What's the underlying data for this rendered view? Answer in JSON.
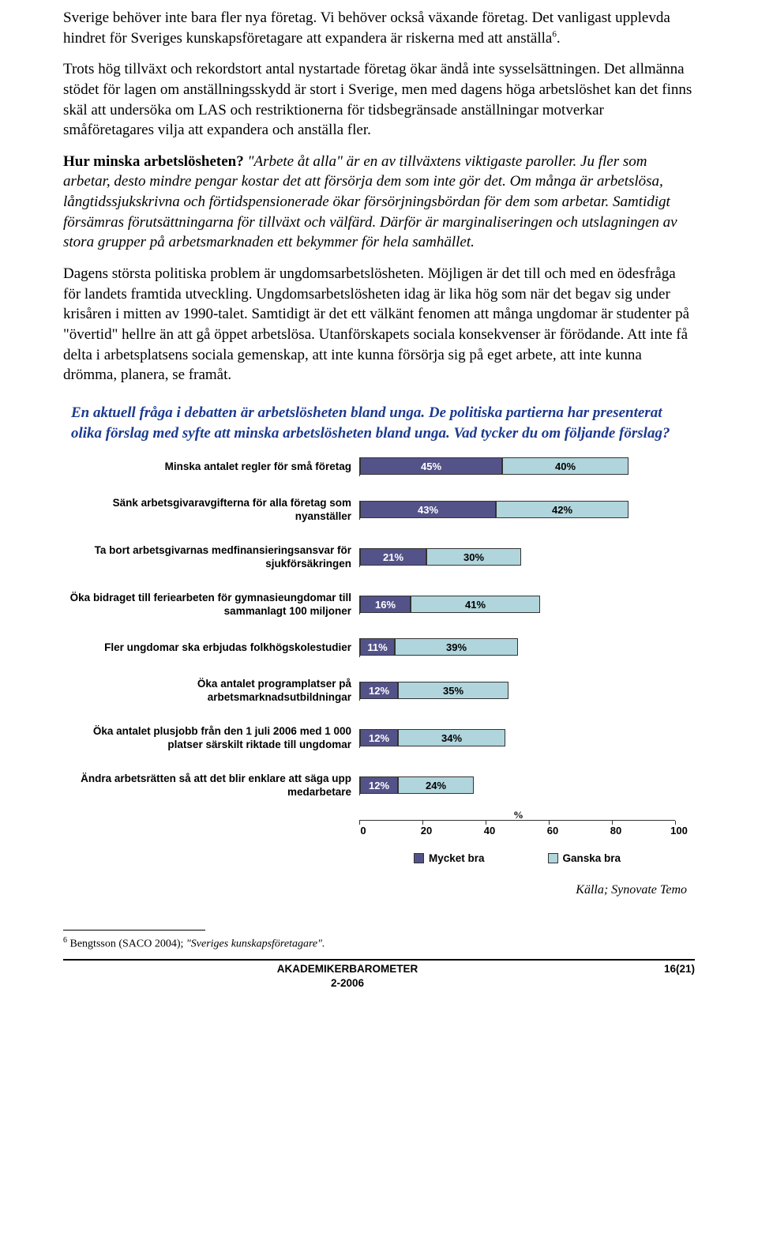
{
  "paragraphs": {
    "p1a": "Sverige behöver inte bara fler nya företag. Vi behöver också växande företag. Det vanligast upplevda hindret för Sveriges kunskapsföretagare att expandera är riskerna med att anställa",
    "p1_fn": "6",
    "p1b": ".",
    "p2": "Trots hög tillväxt och rekordstort antal nystartade företag ökar ändå inte sysselsättningen. Det allmänna stödet för lagen om anställningsskydd är stort i Sverige, men med dagens höga arbetslöshet kan det finns skäl att undersöka om LAS och restriktionerna för tidsbegränsade anställningar motverkar småföretagares vilja att expandera och anställa fler.",
    "p3_lead": "Hur minska arbetslösheten?",
    "p3_rest": " \"Arbete åt alla\" är en av tillväxtens viktigaste paroller. Ju fler som arbetar, desto mindre pengar kostar det att försörja dem som inte gör det. Om många är arbetslösa, långtidssjukskrivna och förtidspensionerade ökar försörjningsbördan för dem som arbetar. Samtidigt försämras förutsättningarna för tillväxt och välfärd. Därför är marginaliseringen och utslagningen av stora grupper på arbetsmarknaden ett bekymmer för hela samhället.",
    "p4": "Dagens största politiska problem är ungdomsarbetslösheten. Möjligen är det till och med en ödesfråga för landets framtida utveckling. Ungdomsarbetslösheten idag är lika hög som när det begav sig under krisåren i mitten av 1990-talet. Samtidigt är det ett välkänt fenomen att många ungdomar är studenter på \"övertid\" hellre än att gå öppet arbetslösa. Utanförskapets sociala konsekvenser är förödande. Att inte få delta i arbetsplatsens sociala gemenskap, att inte kunna försörja sig på eget arbete, att inte kunna drömma, planera, se framåt."
  },
  "question": "En aktuell fråga i debatten är arbetslösheten bland unga. De politiska partierna har presenterat olika förslag med syfte att minska arbetslösheten bland unga. Vad tycker du om följande förslag?",
  "chart": {
    "type": "stacked-bar-horizontal",
    "xmin": 0,
    "xmax": 100,
    "xtick_step": 20,
    "xticks": [
      0,
      20,
      40,
      60,
      80,
      100
    ],
    "axis_symbol": "%",
    "color_a": "#545389",
    "color_b": "#b0d5dc",
    "text_color_a": "#ffffff",
    "text_color_b": "#000000",
    "border_color": "#333333",
    "rows": [
      {
        "label": "Minska antalet regler för små företag",
        "a": 45,
        "b": 40
      },
      {
        "label": "Sänk arbetsgivaravgifterna för alla företag som nyanställer",
        "a": 43,
        "b": 42
      },
      {
        "label": "Ta bort arbetsgivarnas medfinansieringsansvar för sjukförsäkringen",
        "a": 21,
        "b": 30
      },
      {
        "label": "Öka bidraget till feriearbeten för gymnasieungdomar till sammanlagt 100 miljoner",
        "a": 16,
        "b": 41
      },
      {
        "label": "Fler ungdomar ska erbjudas folkhögskolestudier",
        "a": 11,
        "b": 39
      },
      {
        "label": "Öka antalet programplatser på arbetsmarknadsutbildningar",
        "a": 12,
        "b": 35
      },
      {
        "label": "Öka antalet plusjobb från den 1 juli 2006 med 1 000 platser särskilt riktade till ungdomar",
        "a": 12,
        "b": 34
      },
      {
        "label": "Ändra arbetsrätten så att det blir enklare att säga upp medarbetare",
        "a": 12,
        "b": 24
      }
    ],
    "legend_a": "Mycket bra",
    "legend_b": "Ganska bra"
  },
  "source": "Källa; Synovate Temo",
  "footnote_num": "6",
  "footnote_text_a": " Bengtsson (SACO 2004); ",
  "footnote_text_b": "\"Sveriges kunskapsföretagare\".",
  "footer_title": "AKADEMIKERBAROMETER",
  "footer_sub": "2-2006",
  "footer_page": "16(21)"
}
